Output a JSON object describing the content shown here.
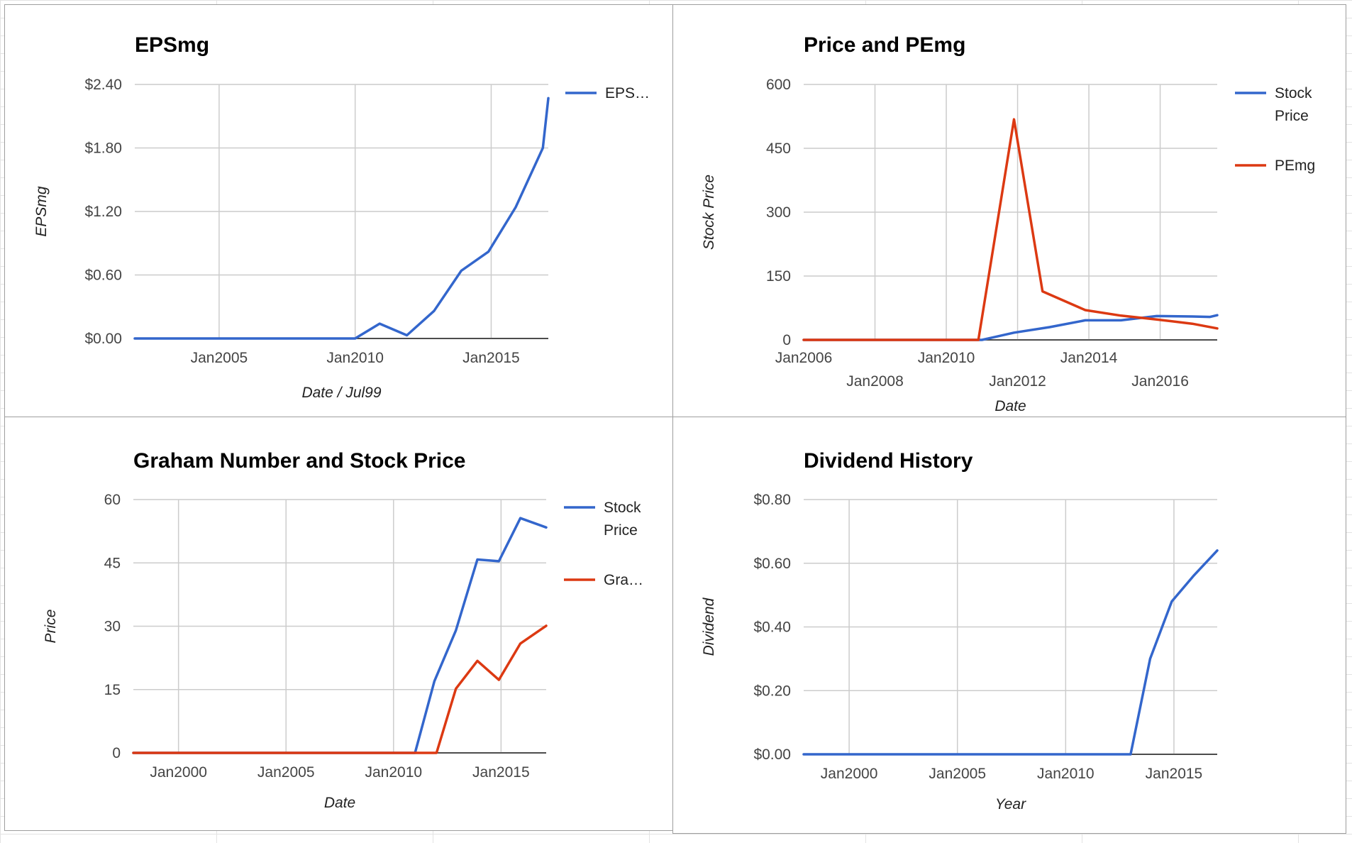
{
  "colors": {
    "blue": "#3366cc",
    "red": "#dc3912",
    "grid": "#cccccc"
  },
  "chart_data": [
    {
      "type": "line",
      "title": "EPSmg",
      "xlabel": "Date / Jul99",
      "ylabel": "EPSmg",
      "xlim": [
        2001.9,
        2017.1
      ],
      "ylim": [
        0,
        2.4
      ],
      "y_ticks": [
        0,
        0.6,
        1.2,
        1.8,
        2.4
      ],
      "y_tick_labels": [
        "$0.00",
        "$0.60",
        "$1.20",
        "$1.80",
        "$2.40"
      ],
      "x_ticks": [
        2005,
        2010,
        2015
      ],
      "x_tick_labels": [
        "Jan2005",
        "Jan2010",
        "Jan2015"
      ],
      "legend_position": "right",
      "series": [
        {
          "name": "EPS…",
          "color": "#3366cc",
          "x": [
            2001.9,
            2010.0,
            2010.9,
            2011.9,
            2012.9,
            2013.9,
            2014.9,
            2015.9,
            2016.9,
            2017.1
          ],
          "y": [
            0,
            0,
            0.14,
            0.03,
            0.26,
            0.64,
            0.82,
            1.24,
            1.8,
            2.27
          ]
        }
      ]
    },
    {
      "type": "line",
      "title": "Price and PEmg",
      "xlabel": "Date",
      "ylabel": "Stock Price",
      "xlim": [
        2006,
        2017.6
      ],
      "ylim": [
        0,
        600
      ],
      "y_ticks": [
        0,
        150,
        300,
        450,
        600
      ],
      "y_tick_labels": [
        "0",
        "150",
        "300",
        "450",
        "600"
      ],
      "x_ticks": [
        2006,
        2008,
        2010,
        2012,
        2014,
        2016
      ],
      "x_tick_labels": [
        "Jan2006",
        "Jan2008",
        "Jan2010",
        "Jan2012",
        "Jan2014",
        "Jan2016"
      ],
      "legend_position": "right",
      "series": [
        {
          "name": "Stock Price",
          "color": "#3366cc",
          "x": [
            2006,
            2011.0,
            2011.9,
            2012.9,
            2013.9,
            2014.9,
            2015.9,
            2016.9,
            2017.4,
            2017.6
          ],
          "y": [
            0,
            0,
            17,
            30,
            46,
            46,
            56,
            55,
            54,
            58
          ]
        },
        {
          "name": "PEmg",
          "color": "#dc3912",
          "x": [
            2006,
            2010.9,
            2011.9,
            2012.7,
            2013.9,
            2014.9,
            2015.9,
            2016.9,
            2017.6
          ],
          "y": [
            0,
            0,
            518,
            114,
            70,
            57,
            48,
            38,
            27
          ]
        }
      ]
    },
    {
      "type": "line",
      "title": "Graham Number and Stock Price",
      "xlabel": "Date",
      "ylabel": "Price",
      "xlim": [
        1997.9,
        2017.1
      ],
      "ylim": [
        0,
        60
      ],
      "y_ticks": [
        0,
        15,
        30,
        45,
        60
      ],
      "y_tick_labels": [
        "0",
        "15",
        "30",
        "45",
        "60"
      ],
      "x_ticks": [
        2000,
        2005,
        2010,
        2015
      ],
      "x_tick_labels": [
        "Jan2000",
        "Jan2005",
        "Jan2010",
        "Jan2015"
      ],
      "legend_position": "right",
      "series": [
        {
          "name": "Stock Price",
          "color": "#3366cc",
          "x": [
            1997.9,
            2011.0,
            2011.9,
            2012.9,
            2013.9,
            2014.9,
            2015.9,
            2017.1
          ],
          "y": [
            0,
            0,
            17,
            29,
            45.8,
            45.4,
            55.6,
            53.4
          ]
        },
        {
          "name": "Gra…",
          "color": "#dc3912",
          "x": [
            1997.9,
            2012.0,
            2012.9,
            2013.9,
            2014.9,
            2015.9,
            2017.1
          ],
          "y": [
            0,
            0,
            15.2,
            21.8,
            17.3,
            25.9,
            30.1
          ]
        }
      ]
    },
    {
      "type": "line",
      "title": "Dividend History",
      "xlabel": "Year",
      "ylabel": "Dividend",
      "xlim": [
        1997.9,
        2017.0
      ],
      "ylim": [
        0,
        0.8
      ],
      "y_ticks": [
        0,
        0.2,
        0.4,
        0.6,
        0.8
      ],
      "y_tick_labels": [
        "$0.00",
        "$0.20",
        "$0.40",
        "$0.60",
        "$0.80"
      ],
      "x_ticks": [
        2000,
        2005,
        2010,
        2015
      ],
      "x_tick_labels": [
        "Jan2000",
        "Jan2005",
        "Jan2010",
        "Jan2015"
      ],
      "legend_position": "none",
      "series": [
        {
          "name": "",
          "color": "#3366cc",
          "x": [
            1997.9,
            2013.0,
            2013.9,
            2014.9,
            2015.9,
            2017.0
          ],
          "y": [
            0,
            0,
            0.3,
            0.48,
            0.56,
            0.64
          ]
        }
      ]
    }
  ]
}
